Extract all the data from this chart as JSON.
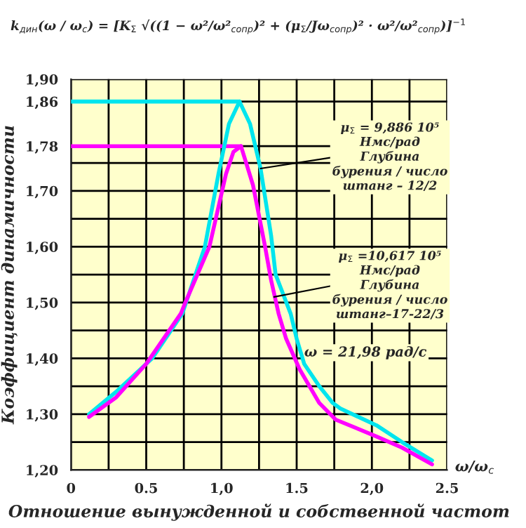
{
  "chart_data": {
    "type": "line",
    "xlabel": "Отношение вынужденной и собственной частот",
    "ylabel": "Коэффициент динамичности",
    "annotations": [
      "k$_{дин}$(ω / ω$_{c}$) = [K$_{Σ}$ √((1 − ω²/ω²$_{сопр}$)² + (μ$_{Σ}$/Jω$_{сопр}$)² · ω²/ω²$_{сопр}$)]$^{−1}$",
      "ω/ω$_{c}$",
      "ω = 21,98 рад/с",
      {
        "text": "μ$_{Σ}$ = 9,886 10⁵\nНмс/рад\nГлубина\nбурения / число\nштанг – 12/2",
        "x": 1.26,
        "y": 1.74
      },
      {
        "text": "μ$_{Σ}$ =10,617 10⁵\nНмс/рад\nГлубина\nбурения / число\nштанг–17-22/3",
        "x": 1.35,
        "y": 1.51
      }
    ],
    "series": [
      {
        "color": "#00e5ee",
        "x": [
          0.12,
          0.3,
          0.54,
          0.74,
          0.89,
          0.98,
          1.05,
          1.12,
          1.19,
          1.26,
          1.33,
          1.36,
          1.46,
          1.5,
          1.55,
          1.65,
          1.74,
          1.79,
          2.03,
          2.2,
          2.4
        ],
        "values": [
          1.3,
          1.34,
          1.4,
          1.48,
          1.6,
          1.73,
          1.82,
          1.86,
          1.82,
          1.74,
          1.62,
          1.55,
          1.48,
          1.435,
          1.39,
          1.35,
          1.32,
          1.31,
          1.28,
          1.25,
          1.217
        ]
      },
      {
        "color": "#ff00ff",
        "x": [
          0.12,
          0.3,
          0.5,
          0.73,
          0.76,
          0.92,
          1.03,
          1.08,
          1.13,
          1.21,
          1.29,
          1.33,
          1.38,
          1.43,
          1.52,
          1.65,
          1.76,
          2.03,
          2.2,
          2.4
        ],
        "values": [
          1.295,
          1.33,
          1.39,
          1.48,
          1.5,
          1.6,
          1.73,
          1.77,
          1.78,
          1.71,
          1.6,
          1.54,
          1.48,
          1.435,
          1.38,
          1.32,
          1.29,
          1.26,
          1.24,
          1.21
        ]
      }
    ],
    "ref_lines": [
      {
        "axis": "y",
        "value": 1.86,
        "color": "#00e5ee"
      },
      {
        "axis": "y",
        "value": 1.78,
        "color": "#ff00ff"
      }
    ],
    "xlim": [
      0,
      2.5
    ],
    "xticks": [
      0,
      {
        "value": 0.25,
        "label": null
      },
      {
        "value": 0.5,
        "label": "0.5"
      },
      {
        "value": 0.75,
        "label": null
      },
      {
        "value": 1.0,
        "label": "1,0"
      },
      {
        "value": 1.25,
        "label": null
      },
      {
        "value": 1.5,
        "label": "1.5"
      },
      {
        "value": 1.75,
        "label": null
      },
      {
        "value": 2.0,
        "label": "2,0"
      },
      {
        "value": 2.25,
        "label": null
      },
      {
        "value": 2.5,
        "label": "2.5"
      }
    ],
    "ylim": [
      1.2,
      1.9
    ],
    "yticks": [
      {
        "value": 1.2,
        "label": "1,20"
      },
      {
        "value": 1.25,
        "label": null
      },
      {
        "value": 1.3,
        "label": "1,30"
      },
      {
        "value": 1.35,
        "label": null
      },
      {
        "value": 1.4,
        "label": "1,40"
      },
      {
        "value": 1.45,
        "label": null
      },
      {
        "value": 1.5,
        "label": "1,50"
      },
      {
        "value": 1.55,
        "label": null
      },
      {
        "value": 1.6,
        "label": "1,60"
      },
      {
        "value": 1.65,
        "label": null
      },
      {
        "value": 1.7,
        "label": "1,70"
      },
      {
        "value": 1.75,
        "label": null
      },
      {
        "value": 1.78,
        "label": "1,78"
      },
      {
        "value": 1.86,
        "label": "1,86"
      },
      {
        "value": 1.9,
        "label": "1,90"
      }
    ],
    "grid": true,
    "legend": false,
    "marker": "none",
    "line_style": "solid"
  }
}
